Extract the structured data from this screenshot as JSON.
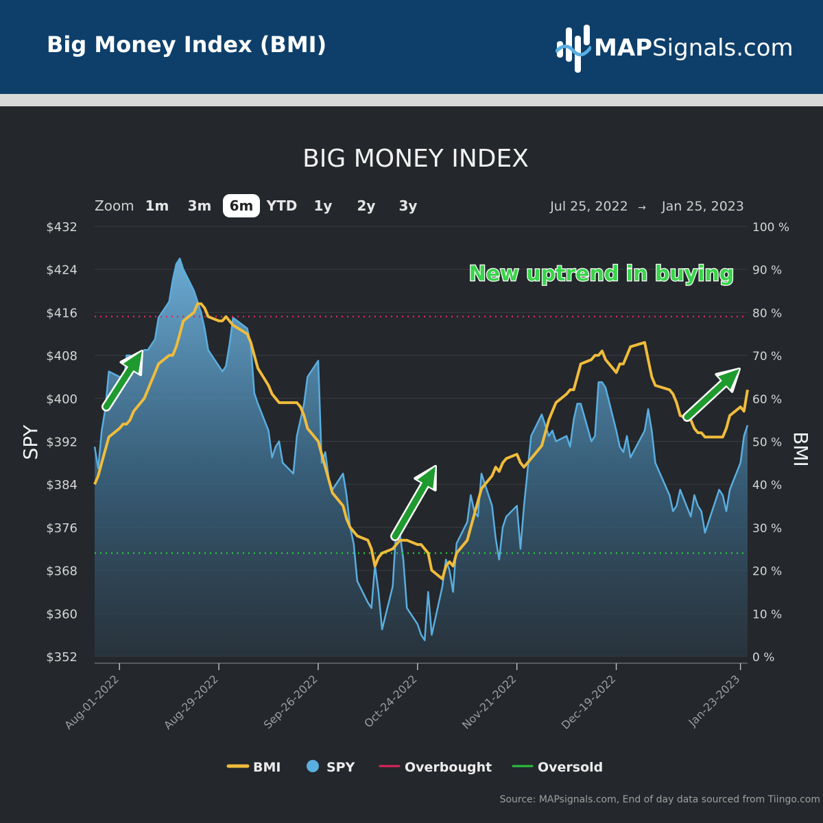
{
  "header": {
    "title": "Big Money Index (BMI)",
    "logo_bold": "MAP",
    "logo_rest": "Signals.com"
  },
  "zoom": {
    "label": "Zoom",
    "options": [
      "1m",
      "3m",
      "6m",
      "YTD",
      "1y",
      "2y",
      "3y"
    ],
    "selected": "6m"
  },
  "range": {
    "from": "Jul 25, 2022",
    "arrow": "→",
    "to": "Jan 25, 2023"
  },
  "annotation": "New uptrend in buying",
  "source": "Source: MAPsignals.com, End of day data sourced from Tiingo.com",
  "colors": {
    "bmi": "#f0bc3c",
    "spy": "#5aaee0",
    "overbought": "#e0245e",
    "oversold": "#27c23d",
    "arrow": "#1f9a2e"
  },
  "chart_data": {
    "type": "line",
    "title": "BIG MONEY INDEX",
    "y_left_label": "SPY",
    "y_right_label": "BMI",
    "y_left_ticks": [
      "$432",
      "$424",
      "$416",
      "$408",
      "$400",
      "$392",
      "$384",
      "$376",
      "$368",
      "$360",
      "$352"
    ],
    "y_right_ticks": [
      "100 %",
      "90 %",
      "80 %",
      "70 %",
      "60 %",
      "50 %",
      "40 %",
      "30 %",
      "20 %",
      "10 %",
      "0 %"
    ],
    "y_left_range": [
      352,
      432
    ],
    "y_right_range": [
      0,
      100
    ],
    "x_range": [
      "2022-07-25",
      "2023-01-25"
    ],
    "x_ticks": [
      "Aug-01-2022",
      "Aug-29-2022",
      "Sep-26-2022",
      "Oct-24-2022",
      "Nov-21-2022",
      "Dec-19-2022",
      "Jan-23-2023"
    ],
    "overbought": 79,
    "oversold": 24,
    "legend": [
      {
        "key": "bmi",
        "label": "BMI"
      },
      {
        "key": "spy",
        "label": "SPY"
      },
      {
        "key": "overbought",
        "label": "Overbought"
      },
      {
        "key": "oversold",
        "label": "Oversold"
      }
    ],
    "series": [
      {
        "name": "SPY",
        "points": [
          [
            "2022-07-25",
            391
          ],
          [
            "2022-07-26",
            387
          ],
          [
            "2022-07-27",
            394
          ],
          [
            "2022-07-28",
            398
          ],
          [
            "2022-07-29",
            405
          ],
          [
            "2022-08-01",
            404
          ],
          [
            "2022-08-02",
            402
          ],
          [
            "2022-08-03",
            408
          ],
          [
            "2022-08-04",
            408
          ],
          [
            "2022-08-05",
            407
          ],
          [
            "2022-08-08",
            409
          ],
          [
            "2022-08-09",
            409
          ],
          [
            "2022-08-10",
            410
          ],
          [
            "2022-08-11",
            411
          ],
          [
            "2022-08-12",
            415
          ],
          [
            "2022-08-15",
            418
          ],
          [
            "2022-08-16",
            422
          ],
          [
            "2022-08-17",
            425
          ],
          [
            "2022-08-18",
            426
          ],
          [
            "2022-08-19",
            424
          ],
          [
            "2022-08-22",
            420
          ],
          [
            "2022-08-23",
            418
          ],
          [
            "2022-08-24",
            416
          ],
          [
            "2022-08-25",
            413
          ],
          [
            "2022-08-26",
            409
          ],
          [
            "2022-08-29",
            406
          ],
          [
            "2022-08-30",
            405
          ],
          [
            "2022-08-31",
            406
          ],
          [
            "2022-09-01",
            410
          ],
          [
            "2022-09-02",
            415
          ],
          [
            "2022-09-06",
            413
          ],
          [
            "2022-09-07",
            410
          ],
          [
            "2022-09-08",
            401
          ],
          [
            "2022-09-09",
            399
          ],
          [
            "2022-09-12",
            394
          ],
          [
            "2022-09-13",
            389
          ],
          [
            "2022-09-14",
            391
          ],
          [
            "2022-09-15",
            392
          ],
          [
            "2022-09-16",
            388
          ],
          [
            "2022-09-19",
            386
          ],
          [
            "2022-09-20",
            393
          ],
          [
            "2022-09-21",
            396
          ],
          [
            "2022-09-22",
            399
          ],
          [
            "2022-09-23",
            404
          ],
          [
            "2022-09-26",
            407
          ],
          [
            "2022-09-27",
            388
          ],
          [
            "2022-09-28",
            390
          ],
          [
            "2022-09-29",
            385
          ],
          [
            "2022-09-30",
            383
          ],
          [
            "2022-10-03",
            386
          ],
          [
            "2022-10-04",
            382
          ],
          [
            "2022-10-05",
            376
          ],
          [
            "2022-10-06",
            373
          ],
          [
            "2022-10-07",
            366
          ],
          [
            "2022-10-10",
            362
          ],
          [
            "2022-10-11",
            361
          ],
          [
            "2022-10-12",
            369
          ],
          [
            "2022-10-13",
            364
          ],
          [
            "2022-10-14",
            357
          ],
          [
            "2022-10-17",
            365
          ],
          [
            "2022-10-18",
            376
          ],
          [
            "2022-10-19",
            375
          ],
          [
            "2022-10-20",
            370
          ],
          [
            "2022-10-21",
            361
          ],
          [
            "2022-10-24",
            358
          ],
          [
            "2022-10-25",
            356
          ],
          [
            "2022-10-26",
            355
          ],
          [
            "2022-10-27",
            364
          ],
          [
            "2022-10-28",
            356
          ],
          [
            "2022-10-31",
            365
          ],
          [
            "2022-11-01",
            370
          ],
          [
            "2022-11-02",
            368
          ],
          [
            "2022-11-03",
            364
          ],
          [
            "2022-11-04",
            373
          ],
          [
            "2022-11-07",
            377
          ],
          [
            "2022-11-08",
            382
          ],
          [
            "2022-11-09",
            379
          ],
          [
            "2022-11-10",
            378
          ],
          [
            "2022-11-11",
            386
          ],
          [
            "2022-11-14",
            380
          ],
          [
            "2022-11-15",
            374
          ],
          [
            "2022-11-16",
            370
          ],
          [
            "2022-11-17",
            376
          ],
          [
            "2022-11-18",
            378
          ],
          [
            "2022-11-21",
            380
          ],
          [
            "2022-11-22",
            372
          ],
          [
            "2022-11-23",
            380
          ],
          [
            "2022-11-25",
            393
          ],
          [
            "2022-11-28",
            397
          ],
          [
            "2022-11-29",
            395
          ],
          [
            "2022-11-30",
            393
          ],
          [
            "2022-12-01",
            394
          ],
          [
            "2022-12-02",
            392
          ],
          [
            "2022-12-05",
            393
          ],
          [
            "2022-12-06",
            391
          ],
          [
            "2022-12-07",
            396
          ],
          [
            "2022-12-08",
            399
          ],
          [
            "2022-12-09",
            399
          ],
          [
            "2022-12-12",
            392
          ],
          [
            "2022-12-13",
            393
          ],
          [
            "2022-12-14",
            403
          ],
          [
            "2022-12-15",
            403
          ],
          [
            "2022-12-16",
            402
          ],
          [
            "2022-12-19",
            394
          ],
          [
            "2022-12-20",
            391
          ],
          [
            "2022-12-21",
            390
          ],
          [
            "2022-12-22",
            393
          ],
          [
            "2022-12-23",
            389
          ],
          [
            "2022-12-27",
            394
          ],
          [
            "2022-12-28",
            398
          ],
          [
            "2022-12-29",
            394
          ],
          [
            "2022-12-30",
            388
          ],
          [
            "2023-01-03",
            382
          ],
          [
            "2023-01-04",
            379
          ],
          [
            "2023-01-05",
            380
          ],
          [
            "2023-01-06",
            383
          ],
          [
            "2023-01-09",
            378
          ],
          [
            "2023-01-10",
            382
          ],
          [
            "2023-01-11",
            380
          ],
          [
            "2023-01-12",
            379
          ],
          [
            "2023-01-13",
            375
          ],
          [
            "2023-01-17",
            383
          ],
          [
            "2023-01-18",
            382
          ],
          [
            "2023-01-19",
            379
          ],
          [
            "2023-01-20",
            383
          ],
          [
            "2023-01-23",
            388
          ],
          [
            "2023-01-24",
            393
          ],
          [
            "2023-01-25",
            395
          ]
        ]
      },
      {
        "name": "BMI",
        "points": [
          [
            "2022-07-25",
            40
          ],
          [
            "2022-07-26",
            42
          ],
          [
            "2022-07-27",
            45
          ],
          [
            "2022-07-28",
            48
          ],
          [
            "2022-07-29",
            51
          ],
          [
            "2022-08-01",
            53
          ],
          [
            "2022-08-02",
            54
          ],
          [
            "2022-08-03",
            54
          ],
          [
            "2022-08-04",
            55
          ],
          [
            "2022-08-05",
            57
          ],
          [
            "2022-08-08",
            60
          ],
          [
            "2022-08-09",
            62
          ],
          [
            "2022-08-10",
            64
          ],
          [
            "2022-08-11",
            66
          ],
          [
            "2022-08-12",
            68
          ],
          [
            "2022-08-15",
            70
          ],
          [
            "2022-08-16",
            70
          ],
          [
            "2022-08-17",
            72
          ],
          [
            "2022-08-18",
            75
          ],
          [
            "2022-08-19",
            78
          ],
          [
            "2022-08-22",
            80
          ],
          [
            "2022-08-23",
            82
          ],
          [
            "2022-08-24",
            82
          ],
          [
            "2022-08-25",
            81
          ],
          [
            "2022-08-26",
            79
          ],
          [
            "2022-08-29",
            78
          ],
          [
            "2022-08-30",
            78
          ],
          [
            "2022-08-31",
            79
          ],
          [
            "2022-09-01",
            78
          ],
          [
            "2022-09-02",
            77
          ],
          [
            "2022-09-06",
            75
          ],
          [
            "2022-09-07",
            73
          ],
          [
            "2022-09-08",
            70
          ],
          [
            "2022-09-09",
            67
          ],
          [
            "2022-09-12",
            63
          ],
          [
            "2022-09-13",
            61
          ],
          [
            "2022-09-14",
            60
          ],
          [
            "2022-09-15",
            59
          ],
          [
            "2022-09-16",
            59
          ],
          [
            "2022-09-19",
            59
          ],
          [
            "2022-09-20",
            59
          ],
          [
            "2022-09-21",
            58
          ],
          [
            "2022-09-22",
            56
          ],
          [
            "2022-09-23",
            53
          ],
          [
            "2022-09-26",
            50
          ],
          [
            "2022-09-27",
            47
          ],
          [
            "2022-09-28",
            44
          ],
          [
            "2022-09-29",
            41
          ],
          [
            "2022-09-30",
            38
          ],
          [
            "2022-10-03",
            35
          ],
          [
            "2022-10-04",
            32
          ],
          [
            "2022-10-05",
            30
          ],
          [
            "2022-10-06",
            29
          ],
          [
            "2022-10-07",
            28
          ],
          [
            "2022-10-10",
            27
          ],
          [
            "2022-10-11",
            25
          ],
          [
            "2022-10-12",
            21
          ],
          [
            "2022-10-13",
            23
          ],
          [
            "2022-10-14",
            24
          ],
          [
            "2022-10-17",
            25
          ],
          [
            "2022-10-18",
            26
          ],
          [
            "2022-10-19",
            27
          ],
          [
            "2022-10-20",
            27
          ],
          [
            "2022-10-21",
            27
          ],
          [
            "2022-10-24",
            26
          ],
          [
            "2022-10-25",
            26
          ],
          [
            "2022-10-26",
            25
          ],
          [
            "2022-10-27",
            24
          ],
          [
            "2022-10-28",
            20
          ],
          [
            "2022-10-31",
            18
          ],
          [
            "2022-11-01",
            21
          ],
          [
            "2022-11-02",
            22
          ],
          [
            "2022-11-03",
            21
          ],
          [
            "2022-11-04",
            24
          ],
          [
            "2022-11-07",
            27
          ],
          [
            "2022-11-08",
            30
          ],
          [
            "2022-11-09",
            33
          ],
          [
            "2022-11-10",
            36
          ],
          [
            "2022-11-11",
            39
          ],
          [
            "2022-11-14",
            42
          ],
          [
            "2022-11-15",
            44
          ],
          [
            "2022-11-16",
            43
          ],
          [
            "2022-11-17",
            45
          ],
          [
            "2022-11-18",
            46
          ],
          [
            "2022-11-21",
            47
          ],
          [
            "2022-11-22",
            45
          ],
          [
            "2022-11-23",
            44
          ],
          [
            "2022-11-25",
            46
          ],
          [
            "2022-11-28",
            49
          ],
          [
            "2022-11-29",
            52
          ],
          [
            "2022-11-30",
            55
          ],
          [
            "2022-12-01",
            57
          ],
          [
            "2022-12-02",
            59
          ],
          [
            "2022-12-05",
            61
          ],
          [
            "2022-12-06",
            62
          ],
          [
            "2022-12-07",
            62
          ],
          [
            "2022-12-08",
            65
          ],
          [
            "2022-12-09",
            68
          ],
          [
            "2022-12-12",
            69
          ],
          [
            "2022-12-13",
            70
          ],
          [
            "2022-12-14",
            70
          ],
          [
            "2022-12-15",
            71
          ],
          [
            "2022-12-16",
            69
          ],
          [
            "2022-12-19",
            66
          ],
          [
            "2022-12-20",
            68
          ],
          [
            "2022-12-21",
            68
          ],
          [
            "2022-12-22",
            70
          ],
          [
            "2022-12-23",
            72
          ],
          [
            "2022-12-27",
            73
          ],
          [
            "2022-12-28",
            69
          ],
          [
            "2022-12-29",
            65
          ],
          [
            "2022-12-30",
            63
          ],
          [
            "2023-01-03",
            62
          ],
          [
            "2023-01-04",
            61
          ],
          [
            "2023-01-05",
            59
          ],
          [
            "2023-01-06",
            56
          ],
          [
            "2023-01-09",
            55
          ],
          [
            "2023-01-10",
            53
          ],
          [
            "2023-01-11",
            52
          ],
          [
            "2023-01-12",
            52
          ],
          [
            "2023-01-13",
            51
          ],
          [
            "2023-01-17",
            51
          ],
          [
            "2023-01-18",
            51
          ],
          [
            "2023-01-19",
            53
          ],
          [
            "2023-01-20",
            56
          ],
          [
            "2023-01-23",
            58
          ],
          [
            "2023-01-24",
            57
          ],
          [
            "2023-01-25",
            62
          ]
        ]
      }
    ]
  }
}
